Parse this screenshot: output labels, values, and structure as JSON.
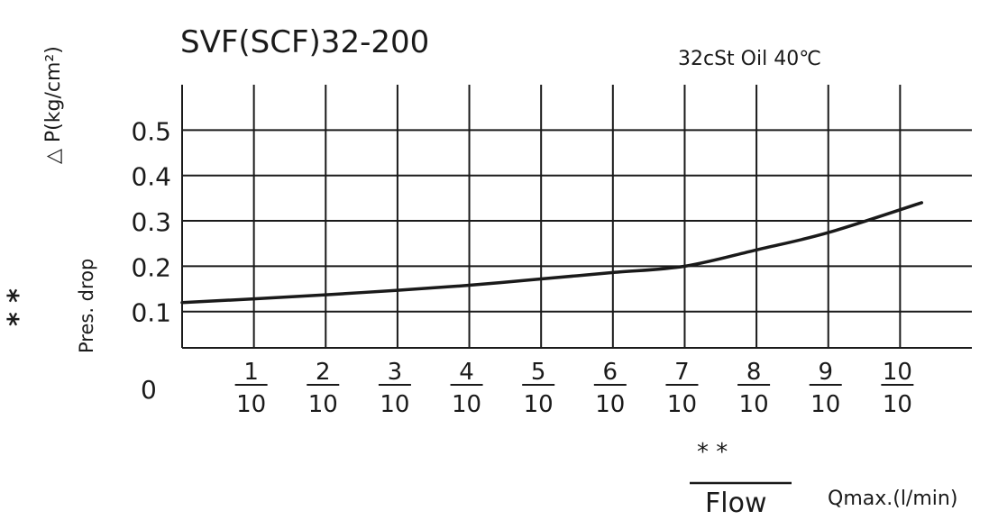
{
  "chart_data": {
    "type": "line",
    "title": "SVF(SCF)32-200",
    "condition": "32cSt Oil 40℃",
    "ylabel": "△ P(kg/cm²)",
    "ylabel_secondary": "Pres. drop",
    "y_marker": "* *",
    "ylim": [
      0.02,
      0.6
    ],
    "yticks": [
      0.1,
      0.2,
      0.3,
      0.4,
      0.5
    ],
    "ytick_labels": [
      "0.1",
      "0.2",
      "0.3",
      "0.4",
      "0.5"
    ],
    "origin_label": "0",
    "xlim": [
      0,
      1.1
    ],
    "xticks": [
      0.1,
      0.2,
      0.3,
      0.4,
      0.5,
      0.6,
      0.7,
      0.8,
      0.9,
      1.0
    ],
    "xtick_labels": [
      {
        "num": "1",
        "den": "10"
      },
      {
        "num": "2",
        "den": "10"
      },
      {
        "num": "3",
        "den": "10"
      },
      {
        "num": "4",
        "den": "10"
      },
      {
        "num": "5",
        "den": "10"
      },
      {
        "num": "6",
        "den": "10"
      },
      {
        "num": "7",
        "den": "10"
      },
      {
        "num": "8",
        "den": "10"
      },
      {
        "num": "9",
        "den": "10"
      },
      {
        "num": "10",
        "den": "10"
      }
    ],
    "xlabel_marker": "* *",
    "xlabel": "Flow",
    "xlabel_unit": "Qmax.(l/min)",
    "grid": true,
    "series": [
      {
        "x": [
          0,
          0.1,
          0.2,
          0.3,
          0.4,
          0.5,
          0.6,
          0.7,
          0.8,
          0.9,
          1.03
        ],
        "y": [
          0.12,
          0.128,
          0.137,
          0.147,
          0.158,
          0.172,
          0.186,
          0.2,
          0.236,
          0.274,
          0.34
        ]
      }
    ],
    "colors": {
      "line": "#1a1a1a",
      "grid": "#1a1a1a",
      "text": "#1a1a1a"
    }
  }
}
